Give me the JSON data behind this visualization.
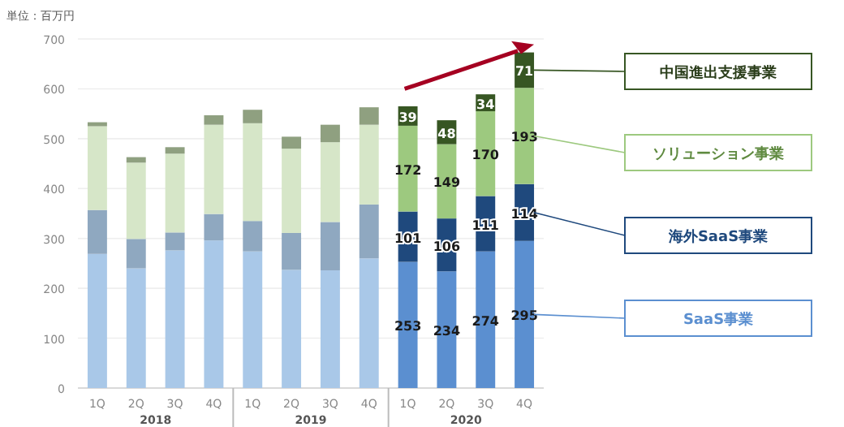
{
  "chart_data": {
    "type": "bar",
    "stacked": true,
    "ylabel": "単位：百万円",
    "categories": [
      "1Q",
      "2Q",
      "3Q",
      "4Q",
      "1Q",
      "2Q",
      "3Q",
      "4Q",
      "1Q",
      "2Q",
      "3Q",
      "4Q"
    ],
    "annotations": [
      "2018",
      "2019",
      "2020"
    ],
    "ylim": [
      0,
      700
    ],
    "yticks": [
      0,
      100,
      200,
      300,
      400,
      500,
      600,
      700
    ],
    "grid": "y",
    "legend": "right",
    "series": [
      {
        "name": "SaaS事業",
        "color": "#5b8fd0",
        "colors": [
          "#a9c8e8",
          "#a9c8e8",
          "#a9c8e8",
          "#a9c8e8",
          "#a9c8e8",
          "#a9c8e8",
          "#a9c8e8",
          "#a9c8e8",
          "#5b8fd0",
          "#5b8fd0",
          "#5b8fd0",
          "#5b8fd0"
        ],
        "values": [
          269,
          240,
          276,
          296,
          274,
          237,
          236,
          260,
          253,
          234,
          274,
          295
        ],
        "value_labels": [
          null,
          null,
          null,
          null,
          null,
          null,
          null,
          null,
          "253",
          "234",
          "274",
          "295"
        ]
      },
      {
        "name": "海外SaaS事業",
        "color": "#1f497d",
        "colors": [
          "#8fa8c0",
          "#8fa8c0",
          "#8fa8c0",
          "#8fa8c0",
          "#8fa8c0",
          "#8fa8c0",
          "#8fa8c0",
          "#8fa8c0",
          "#1f497d",
          "#1f497d",
          "#1f497d",
          "#1f497d"
        ],
        "values": [
          88,
          59,
          36,
          53,
          61,
          74,
          97,
          108,
          101,
          106,
          111,
          114
        ],
        "value_labels": [
          null,
          null,
          null,
          null,
          null,
          null,
          null,
          null,
          "101",
          "106",
          "111",
          "114"
        ]
      },
      {
        "name": "ソリューション事業",
        "color": "#9dc97f",
        "colors": [
          "#d6e6c8",
          "#d6e6c8",
          "#d6e6c8",
          "#d6e6c8",
          "#d6e6c8",
          "#d6e6c8",
          "#d6e6c8",
          "#d6e6c8",
          "#9dc97f",
          "#9dc97f",
          "#9dc97f",
          "#9dc97f"
        ],
        "values": [
          168,
          153,
          158,
          179,
          196,
          169,
          160,
          160,
          172,
          149,
          170,
          193
        ],
        "value_labels": [
          null,
          null,
          null,
          null,
          null,
          null,
          null,
          null,
          "172",
          "149",
          "170",
          "193"
        ]
      },
      {
        "name": "中国進出支援事業",
        "color": "#375623",
        "colors": [
          "#8fa080",
          "#8fa080",
          "#8fa080",
          "#8fa080",
          "#8fa080",
          "#8fa080",
          "#8fa080",
          "#8fa080",
          "#375623",
          "#375623",
          "#375623",
          "#375623"
        ],
        "values": [
          8,
          11,
          13,
          19,
          27,
          24,
          35,
          35,
          39,
          48,
          34,
          71
        ],
        "value_labels": [
          null,
          null,
          null,
          null,
          null,
          null,
          null,
          null,
          "39",
          "48",
          "34",
          "71"
        ]
      }
    ]
  }
}
